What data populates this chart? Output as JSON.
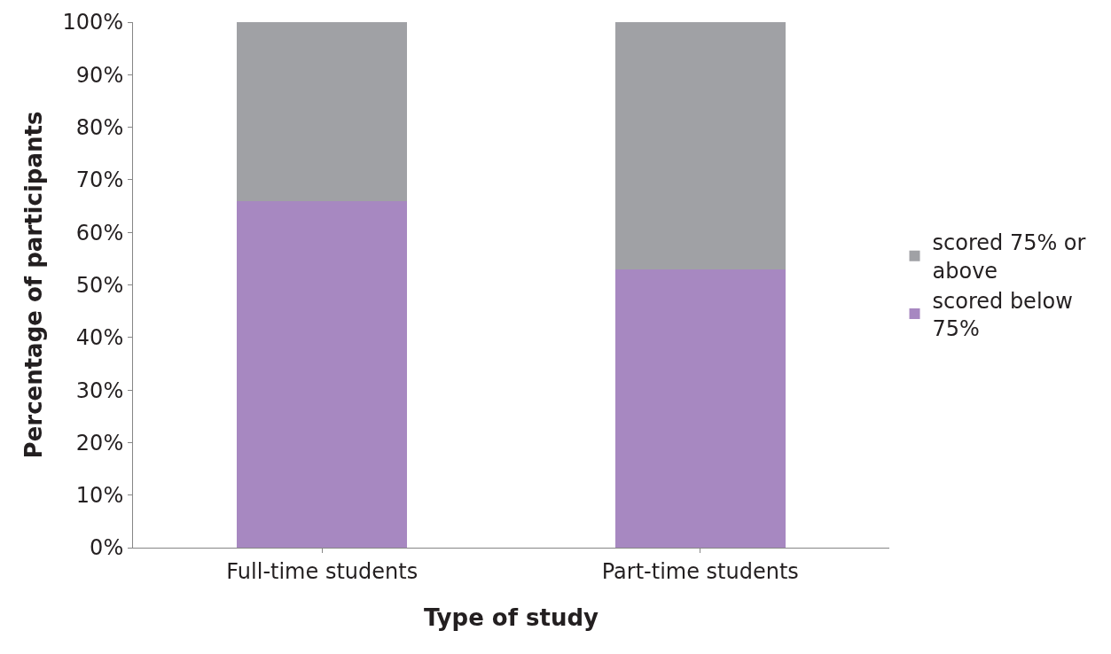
{
  "chart_data": {
    "type": "bar",
    "stacked": true,
    "xlabel": "Type of study",
    "ylabel": "Percentage of participants",
    "categories": [
      "Full-time students",
      "Part-time students"
    ],
    "series": [
      {
        "name": "scored below 75%",
        "color": "#a788c1",
        "values": [
          66,
          53
        ]
      },
      {
        "name": "scored 75% or above",
        "color": "#a0a1a5",
        "values": [
          34,
          47
        ]
      }
    ],
    "ylim": [
      0,
      100
    ],
    "yticks": [
      {
        "value": 0,
        "label": "0%"
      },
      {
        "value": 10,
        "label": "10%"
      },
      {
        "value": 20,
        "label": "20%"
      },
      {
        "value": 30,
        "label": "30%"
      },
      {
        "value": 40,
        "label": "40%"
      },
      {
        "value": 50,
        "label": "50%"
      },
      {
        "value": 60,
        "label": "60%"
      },
      {
        "value": 70,
        "label": "70%"
      },
      {
        "value": 80,
        "label": "80%"
      },
      {
        "value": 90,
        "label": "90%"
      },
      {
        "value": 100,
        "label": "100%"
      }
    ],
    "legend": "right"
  }
}
